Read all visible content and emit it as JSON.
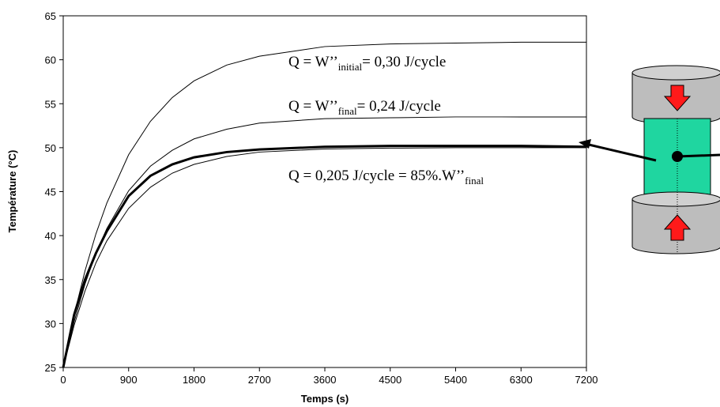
{
  "chart_data": {
    "type": "line",
    "xlabel": "Temps (s)",
    "ylabel": "Température (°C)",
    "x": [
      0,
      150,
      300,
      450,
      600,
      900,
      1200,
      1500,
      1800,
      2250,
      2700,
      3600,
      4500,
      5400,
      6300,
      7200
    ],
    "series": [
      {
        "color": "#000000",
        "values": [
          25,
          31.0,
          36.0,
          40.2,
          43.7,
          49.2,
          53.0,
          55.7,
          57.6,
          59.4,
          60.4,
          61.5,
          61.8,
          61.9,
          62.0,
          62.0
        ]
      },
      {
        "color": "#000000",
        "values": [
          25,
          30.2,
          34.5,
          38.0,
          40.8,
          45.1,
          47.9,
          49.7,
          51.0,
          52.1,
          52.8,
          53.3,
          53.4,
          53.5,
          53.5,
          53.5
        ]
      },
      {
        "color": "#000000",
        "values": [
          25,
          29.8,
          33.7,
          36.9,
          39.4,
          43.1,
          45.5,
          47.1,
          48.1,
          49.0,
          49.5,
          49.85,
          49.95,
          50.0,
          50.0,
          50.0
        ]
      },
      {
        "color": "#000000",
        "values": [
          25,
          31.0,
          35.0,
          38.0,
          40.5,
          44.5,
          46.8,
          48.1,
          48.9,
          49.5,
          49.8,
          50.1,
          50.2,
          50.2,
          50.2,
          50.1
        ]
      }
    ],
    "xlim": [
      0,
      7200
    ],
    "xticks": [
      0,
      900,
      1800,
      2700,
      3600,
      4500,
      5400,
      6300,
      7200
    ],
    "ylim": [
      25,
      65
    ],
    "yticks": [
      25,
      30,
      35,
      40,
      45,
      50,
      55,
      60,
      65
    ],
    "grid": false,
    "annotations": [
      {
        "text": "Q = W’’",
        "sub": "initial",
        "tail": "= 0,30 J/cycle"
      },
      {
        "text": "Q = W’’",
        "sub": "final",
        "tail": "= 0,24 J/cycle"
      },
      {
        "text": "Q = 0,205 J/cycle = 85%.W’’",
        "sub": "final"
      }
    ]
  }
}
